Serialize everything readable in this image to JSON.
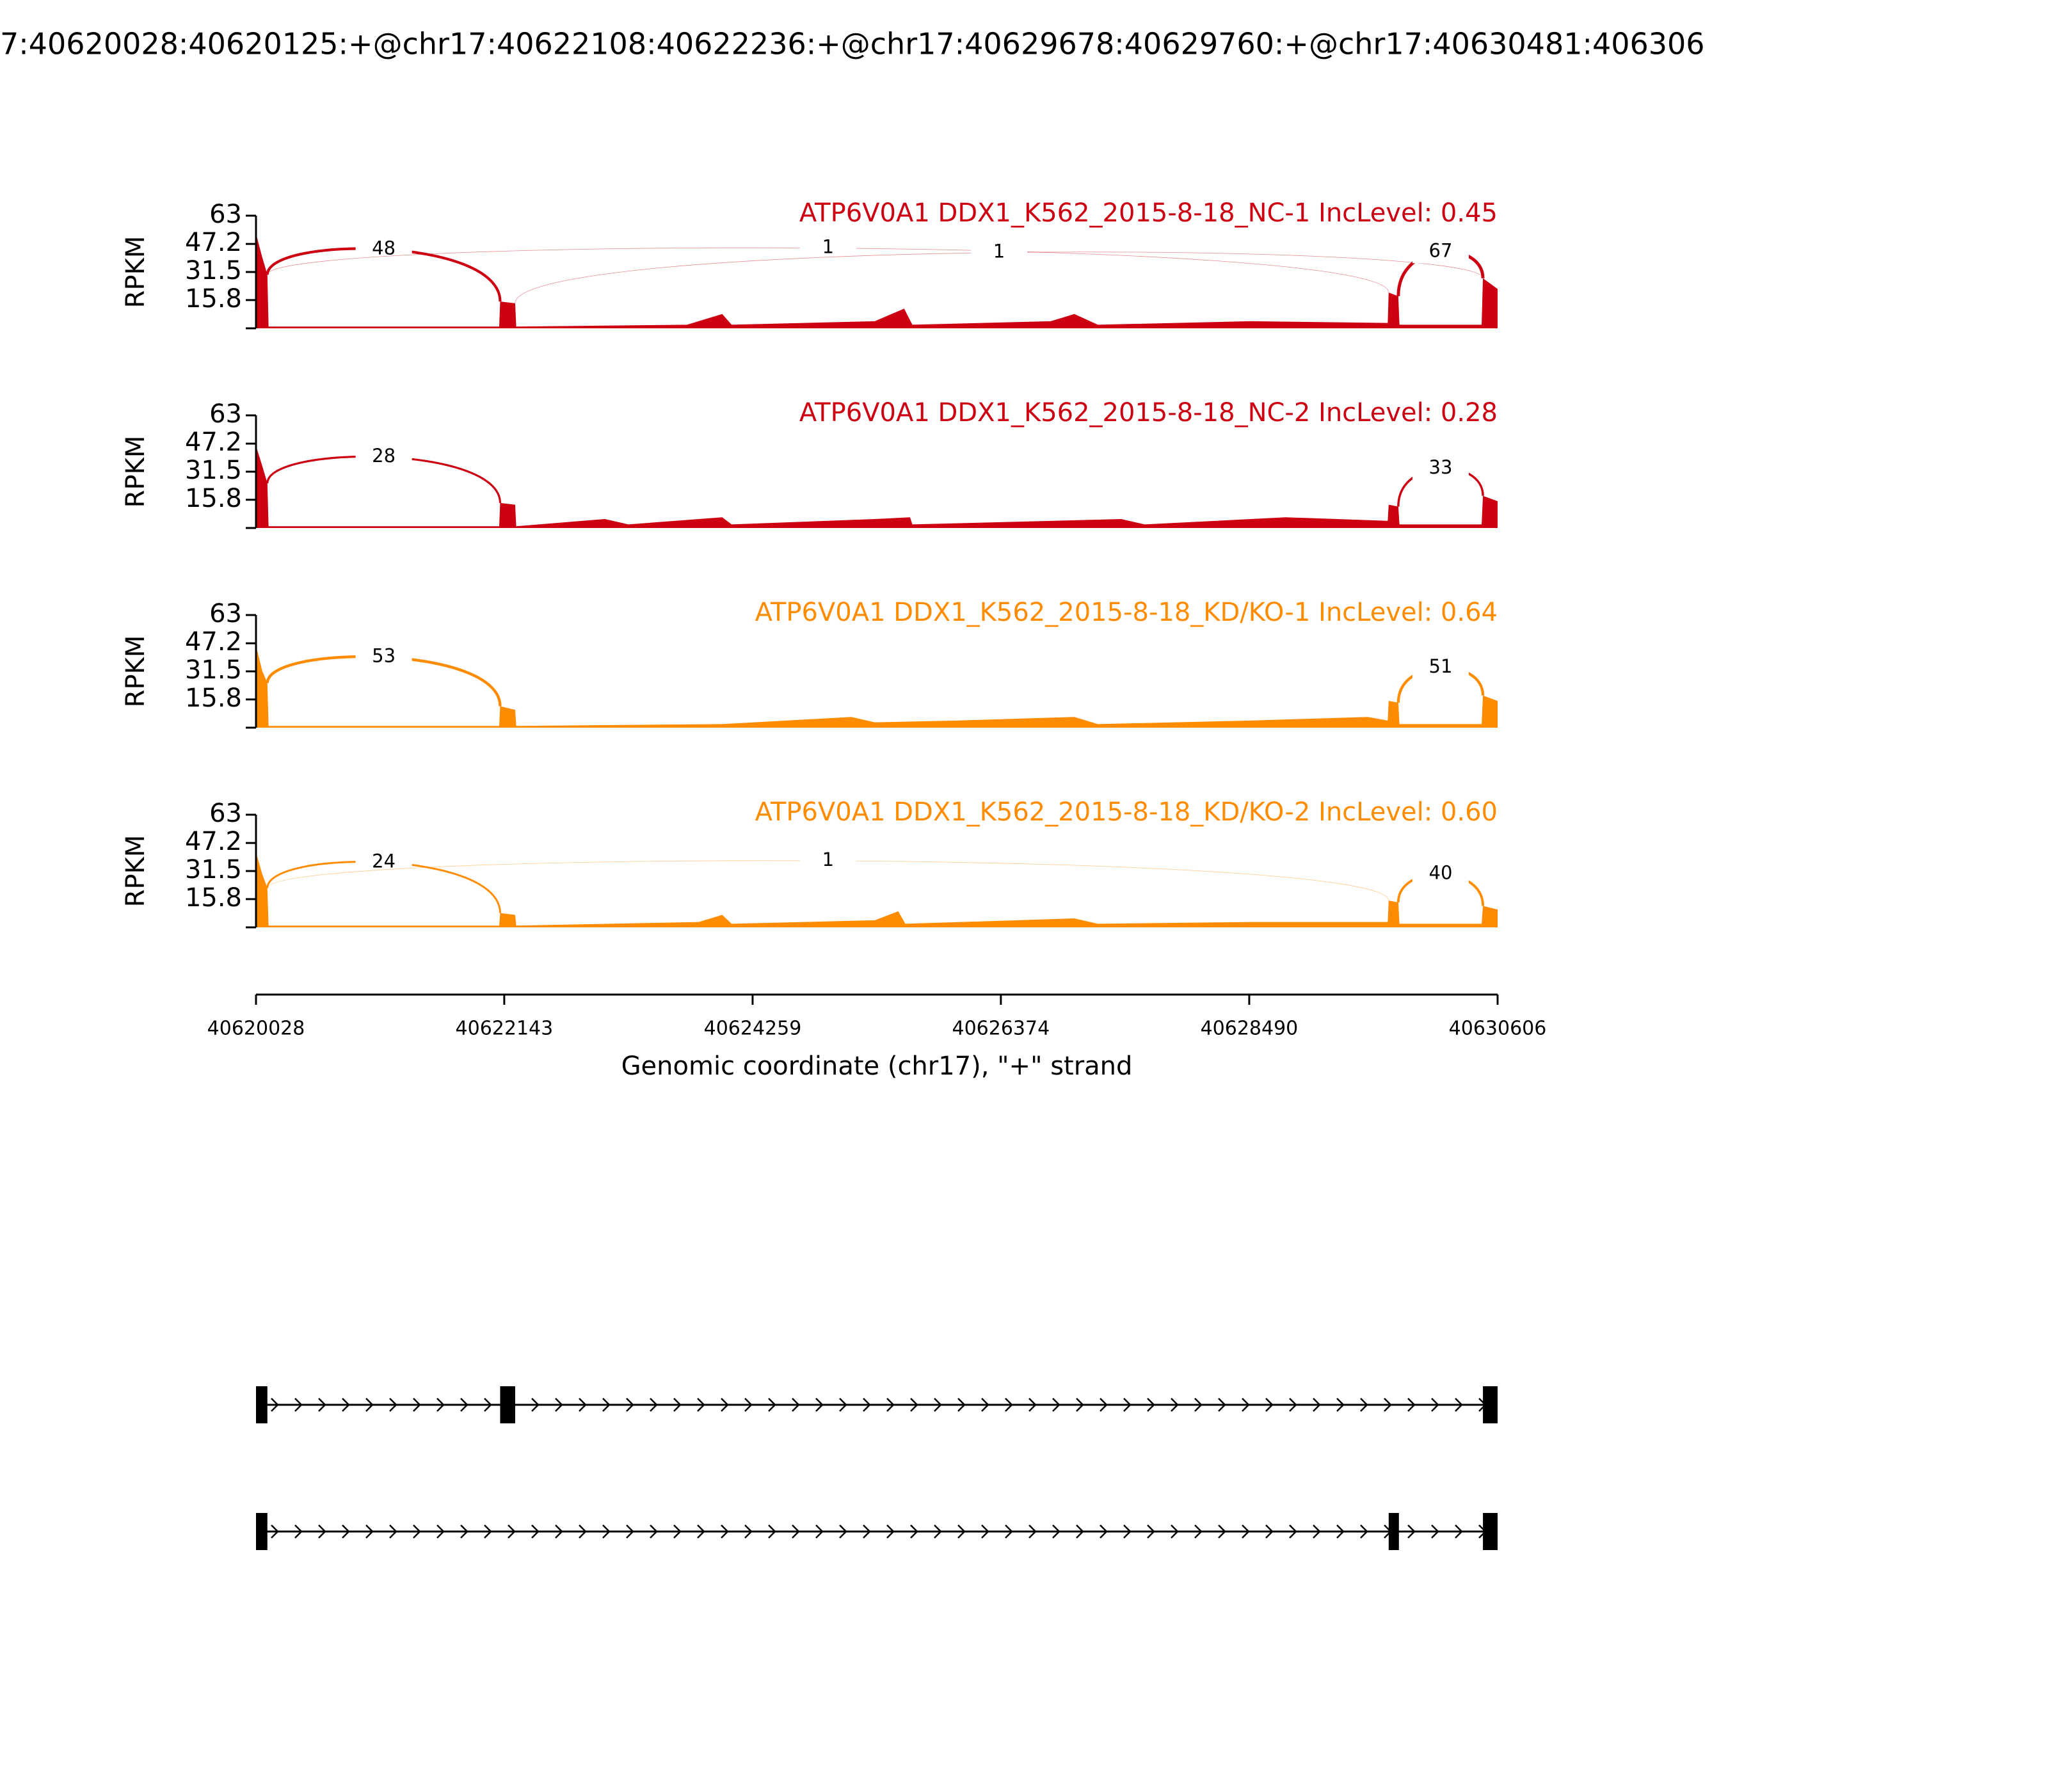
{
  "title": "7:40620028:40620125:+@chr17:40622108:40622236:+@chr17:40629678:40629760:+@chr17:40630481:406306",
  "chart_data": [
    {
      "type": "sashimi",
      "title": "ATP6V0A1 DDX1_K562_2015-8-18_NC-1 IncLevel: 0.45",
      "ylabel": "RPKM",
      "color": "#cc0011",
      "ylim": [
        0,
        63
      ],
      "yticks": [
        15.8,
        31.5,
        47.2,
        63
      ],
      "coverage": {
        "x": [
          40620028,
          40620080,
          40620125,
          40620135,
          40622100,
          40622108,
          40622236,
          40622245,
          40623700,
          40624000,
          40624080,
          40625300,
          40625550,
          40625620,
          40626800,
          40627000,
          40627200,
          40628500,
          40629670,
          40629678,
          40629760,
          40629770,
          40630470,
          40630481,
          40630606
        ],
        "values": [
          53,
          40,
          30,
          1,
          1,
          15,
          14,
          1,
          2,
          8,
          2,
          4,
          11,
          2,
          4,
          8,
          2,
          4,
          3,
          20,
          18,
          2,
          2,
          28,
          22
        ]
      },
      "junctions": [
        {
          "start": 40620125,
          "end": 40622108,
          "count": 48
        },
        {
          "start": 40620125,
          "end": 40629678,
          "count": 1
        },
        {
          "start": 40622236,
          "end": 40630481,
          "count": 1
        },
        {
          "start": 40629760,
          "end": 40630481,
          "count": 67
        }
      ]
    },
    {
      "type": "sashimi",
      "title": "ATP6V0A1 DDX1_K562_2015-8-18_NC-2 IncLevel: 0.28",
      "ylabel": "RPKM",
      "color": "#cc0011",
      "ylim": [
        0,
        63
      ],
      "yticks": [
        15.8,
        31.5,
        47.2,
        63
      ],
      "coverage": {
        "x": [
          40620028,
          40620080,
          40620125,
          40620135,
          40622100,
          40622108,
          40622236,
          40622245,
          40623000,
          40623200,
          40624000,
          40624080,
          40625300,
          40625600,
          40625620,
          40627400,
          40627600,
          40628800,
          40629670,
          40629678,
          40629760,
          40629770,
          40630470,
          40630481,
          40630606
        ],
        "values": [
          46,
          35,
          25,
          1,
          1,
          14,
          13,
          1,
          5,
          2,
          6,
          2,
          5,
          6,
          2,
          5,
          2,
          6,
          4,
          13,
          12,
          2,
          2,
          18,
          15
        ]
      },
      "junctions": [
        {
          "start": 40620125,
          "end": 40622108,
          "count": 28
        },
        {
          "start": 40629760,
          "end": 40630481,
          "count": 33
        }
      ]
    },
    {
      "type": "sashimi",
      "title": "ATP6V0A1 DDX1_K562_2015-8-18_KD/KO-1 IncLevel: 0.64",
      "ylabel": "RPKM",
      "color": "#ff8c00",
      "ylim": [
        0,
        63
      ],
      "yticks": [
        15.8,
        31.5,
        47.2,
        63
      ],
      "coverage": {
        "x": [
          40620028,
          40620080,
          40620125,
          40620135,
          40622100,
          40622108,
          40622236,
          40622245,
          40624000,
          40625100,
          40625300,
          40626000,
          40627000,
          40627200,
          40628500,
          40629500,
          40629670,
          40629678,
          40629760,
          40629770,
          40630470,
          40630481,
          40630606
        ],
        "values": [
          46,
          32,
          25,
          1,
          1,
          12,
          10,
          1,
          2,
          6,
          3,
          4,
          6,
          2,
          4,
          6,
          4,
          15,
          14,
          2,
          2,
          18,
          15
        ]
      },
      "junctions": [
        {
          "start": 40620125,
          "end": 40622108,
          "count": 53
        },
        {
          "start": 40629760,
          "end": 40630481,
          "count": 51
        }
      ]
    },
    {
      "type": "sashimi",
      "title": "ATP6V0A1 DDX1_K562_2015-8-18_KD/KO-2 IncLevel: 0.60",
      "ylabel": "RPKM",
      "color": "#ff8c00",
      "ylim": [
        0,
        63
      ],
      "yticks": [
        15.8,
        31.5,
        47.2,
        63
      ],
      "coverage": {
        "x": [
          40620028,
          40620080,
          40620125,
          40620135,
          40622100,
          40622108,
          40622236,
          40622245,
          40623800,
          40624000,
          40624080,
          40625300,
          40625500,
          40625560,
          40627000,
          40627200,
          40628500,
          40629670,
          40629678,
          40629760,
          40629770,
          40630470,
          40630481,
          40630606
        ],
        "values": [
          42,
          30,
          22,
          1,
          1,
          8,
          7,
          1,
          3,
          7,
          2,
          4,
          9,
          2,
          5,
          2,
          3,
          3,
          15,
          14,
          2,
          2,
          12,
          10
        ]
      },
      "junctions": [
        {
          "start": 40620125,
          "end": 40622108,
          "count": 24
        },
        {
          "start": 40620125,
          "end": 40629678,
          "count": 1
        },
        {
          "start": 40629760,
          "end": 40630481,
          "count": 40
        }
      ]
    }
  ],
  "x_axis": {
    "xlim": [
      40620028,
      40630606
    ],
    "xticks": [
      40620028,
      40622143,
      40624259,
      40626374,
      40628490,
      40630606
    ],
    "xlabel": "Genomic coordinate (chr17), \"+\" strand"
  },
  "gene_model": {
    "transcripts": [
      {
        "exons": [
          [
            40620028,
            40620125
          ],
          [
            40622108,
            40622236
          ],
          [
            40630481,
            40630606
          ]
        ]
      },
      {
        "exons": [
          [
            40620028,
            40620125
          ],
          [
            40629678,
            40629760
          ],
          [
            40630481,
            40630606
          ]
        ]
      }
    ]
  }
}
